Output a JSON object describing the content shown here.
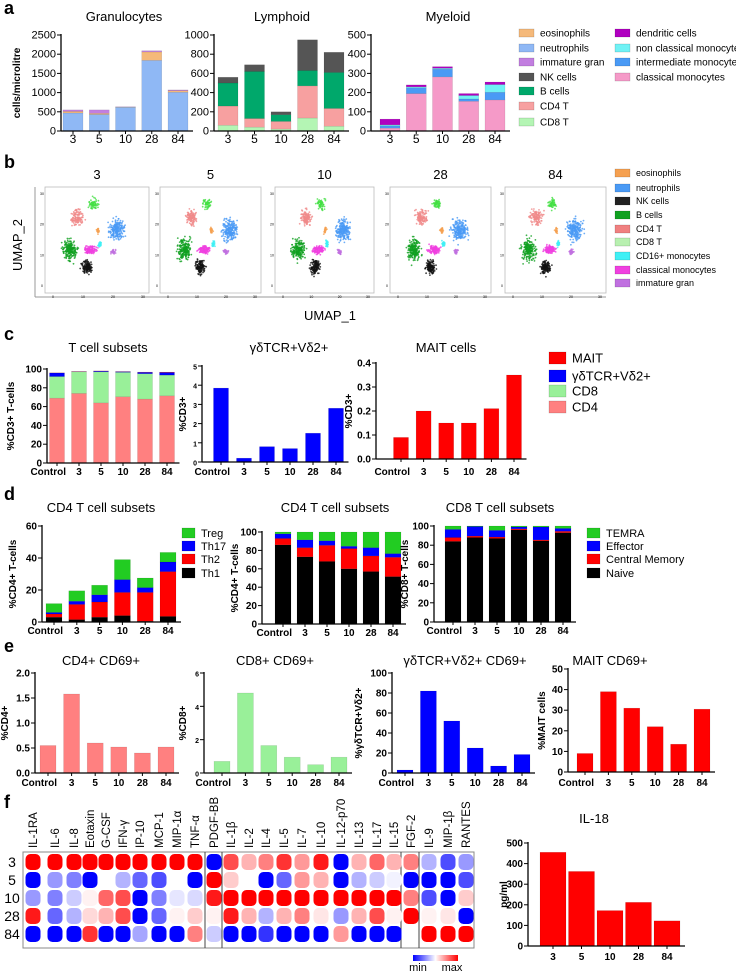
{
  "panel_labels": [
    "a",
    "b",
    "c",
    "d",
    "e",
    "f"
  ],
  "legends": {
    "a": [
      {
        "label": "eosinophils",
        "color": "#f5b97a"
      },
      {
        "label": "neutrophils",
        "color": "#8fb8f5"
      },
      {
        "label": "immature gran",
        "color": "#c27ee0"
      },
      {
        "label": "NK cells",
        "color": "#555555"
      },
      {
        "label": "B cells",
        "color": "#00a86b"
      },
      {
        "label": "CD4 T",
        "color": "#f7a0a0"
      },
      {
        "label": "CD8 T",
        "color": "#b4f5b4"
      },
      {
        "label": "dendritic cells",
        "color": "#b000c0"
      },
      {
        "label": "non classical monocytes",
        "color": "#70f2f5"
      },
      {
        "label": "intermediate monocytes",
        "color": "#4a9af5"
      },
      {
        "label": "classical monocytes",
        "color": "#f59ac8"
      }
    ],
    "b": [
      {
        "label": "eosinophils",
        "color": "#f5a050"
      },
      {
        "label": "neutrophils",
        "color": "#4a9af5"
      },
      {
        "label": "NK cells",
        "color": "#222222"
      },
      {
        "label": "B cells",
        "color": "#10a020"
      },
      {
        "label": "CD4 T",
        "color": "#f08080"
      },
      {
        "label": "CD8 T",
        "color": "#b8f0b0"
      },
      {
        "label": "CD16+ monocytes",
        "color": "#40f0f5"
      },
      {
        "label": "classical monocytes",
        "color": "#f040e0"
      },
      {
        "label": "immature gran",
        "color": "#c070e0"
      }
    ],
    "c": [
      {
        "label": "MAIT",
        "color": "#ff0000"
      },
      {
        "label": "γδTCR+Vδ2+",
        "color": "#0000ff"
      },
      {
        "label": "CD8",
        "color": "#99f099"
      },
      {
        "label": "CD4",
        "color": "#ff8080"
      }
    ],
    "d_cd4": [
      {
        "label": "Treg",
        "color": "#22cc22"
      },
      {
        "label": "Th17",
        "color": "#0000ff"
      },
      {
        "label": "Th2",
        "color": "#ff0000"
      },
      {
        "label": "Th1",
        "color": "#000000"
      }
    ],
    "d_cd8": [
      {
        "label": "TEMRA",
        "color": "#22cc22"
      },
      {
        "label": "Effector",
        "color": "#0000ff"
      },
      {
        "label": "Central Memory",
        "color": "#ff0000"
      },
      {
        "label": "Naive",
        "color": "#000000"
      }
    ]
  },
  "chart_data": [
    {
      "type": "bar",
      "stacked": true,
      "title": "Granulocytes",
      "ylabel": "cells/microlitre",
      "xlabel": "",
      "categories": [
        "3",
        "5",
        "10",
        "28",
        "84"
      ],
      "ylim": [
        0,
        2500
      ],
      "yticks": [
        0,
        500,
        1000,
        1500,
        2000,
        2500
      ],
      "ytick_labels": [
        "0",
        "500",
        "1000",
        "1500",
        "2000",
        "2500"
      ],
      "series": [
        {
          "name": "neutrophils",
          "color": "#8fb8f5",
          "values": [
            470,
            430,
            620,
            1840,
            1010
          ]
        },
        {
          "name": "eosinophils",
          "color": "#f5b97a",
          "values": [
            40,
            30,
            5,
            220,
            40
          ]
        },
        {
          "name": "immature gran",
          "color": "#c27ee0",
          "values": [
            40,
            90,
            5,
            30,
            20
          ]
        }
      ]
    },
    {
      "type": "bar",
      "stacked": true,
      "title": "Lymphoid",
      "ylabel": "",
      "xlabel": "",
      "categories": [
        "3",
        "5",
        "10",
        "28",
        "84"
      ],
      "ylim": [
        0,
        1000
      ],
      "yticks": [
        0,
        200,
        400,
        600,
        800,
        1000
      ],
      "ytick_labels": [
        "0",
        "200",
        "400",
        "600",
        "800",
        "1000"
      ],
      "series": [
        {
          "name": "CD8 T",
          "color": "#b4f5b4",
          "values": [
            60,
            40,
            20,
            135,
            50
          ]
        },
        {
          "name": "CD4 T",
          "color": "#f7a0a0",
          "values": [
            200,
            90,
            80,
            335,
            185
          ]
        },
        {
          "name": "B cells",
          "color": "#00a86b",
          "values": [
            240,
            490,
            70,
            160,
            375
          ]
        },
        {
          "name": "NK cells",
          "color": "#555555",
          "values": [
            60,
            70,
            30,
            320,
            210
          ]
        }
      ]
    },
    {
      "type": "bar",
      "stacked": true,
      "title": "Myeloid",
      "ylabel": "",
      "xlabel": "",
      "categories": [
        "3",
        "5",
        "10",
        "28",
        "84"
      ],
      "ylim": [
        0,
        500
      ],
      "yticks": [
        0,
        100,
        200,
        300,
        400,
        500
      ],
      "ytick_labels": [
        "0",
        "100",
        "200",
        "300",
        "400",
        "500"
      ],
      "series": [
        {
          "name": "classical monocytes",
          "color": "#f59ac8",
          "values": [
            15,
            195,
            282,
            155,
            162
          ]
        },
        {
          "name": "intermediate monocytes",
          "color": "#4a9af5",
          "values": [
            12,
            30,
            40,
            12,
            40
          ]
        },
        {
          "name": "non classical monocytes",
          "color": "#70f2f5",
          "values": [
            5,
            5,
            5,
            18,
            40
          ]
        },
        {
          "name": "dendritic cells",
          "color": "#b000c0",
          "values": [
            30,
            10,
            8,
            10,
            13
          ]
        }
      ]
    },
    {
      "type": "scatter",
      "title": "UMAP",
      "xlabel": "UMAP_1",
      "ylabel": "UMAP_2",
      "panels": [
        "3",
        "5",
        "10",
        "28",
        "84"
      ],
      "tick_labels": [
        "0",
        "10",
        "20",
        "30"
      ]
    },
    {
      "type": "bar",
      "stacked": true,
      "title": "T cell subsets",
      "ylabel": "%CD3+ T-cells",
      "xlabel": "",
      "categories": [
        "Control",
        "3",
        "5",
        "10",
        "28",
        "84"
      ],
      "ylim": [
        0,
        100
      ],
      "yticks": [
        0,
        20,
        40,
        60,
        80,
        100
      ],
      "ytick_labels": [
        "0",
        "20",
        "40",
        "60",
        "80",
        "100"
      ],
      "series": [
        {
          "name": "CD4",
          "color": "#ff8080",
          "values": [
            69,
            74,
            64,
            70.5,
            68,
            71.5
          ]
        },
        {
          "name": "CD8",
          "color": "#99f099",
          "values": [
            23,
            23,
            33,
            26,
            27,
            22
          ]
        },
        {
          "name": "γδTCR+Vδ2+",
          "color": "#0000ff",
          "values": [
            3.8,
            0.2,
            0.8,
            0.7,
            1.5,
            2.8
          ]
        },
        {
          "name": "MAIT",
          "color": "#ff0000",
          "values": [
            0.1,
            0.2,
            0.15,
            0.15,
            0.2,
            0.35
          ]
        }
      ]
    },
    {
      "type": "bar",
      "title": "γδTCR+Vδ2+",
      "ylabel": "%CD3+",
      "xlabel": "",
      "categories": [
        "Control",
        "3",
        "5",
        "10",
        "28",
        "84"
      ],
      "ylim": [
        0,
        5
      ],
      "yticks": [
        0,
        1,
        2,
        3,
        4,
        5
      ],
      "ytick_labels": [
        "0",
        "1",
        "2",
        "3",
        "4",
        "5"
      ],
      "series": [
        {
          "name": "γδTCR+Vδ2+",
          "color": "#0000ff",
          "values": [
            3.85,
            0.2,
            0.8,
            0.7,
            1.5,
            2.8
          ]
        }
      ]
    },
    {
      "type": "bar",
      "title": "MAIT cells",
      "ylabel": "%CD3+",
      "xlabel": "",
      "categories": [
        "Control",
        "3",
        "5",
        "10",
        "28",
        "84"
      ],
      "ylim": [
        0,
        0.4
      ],
      "yticks": [
        0,
        0.1,
        0.2,
        0.3,
        0.4
      ],
      "ytick_labels": [
        "0.0",
        "0.1",
        "0.2",
        "0.3",
        "0.4"
      ],
      "series": [
        {
          "name": "MAIT",
          "color": "#ff0000",
          "values": [
            0.09,
            0.2,
            0.15,
            0.15,
            0.21,
            0.35
          ]
        }
      ]
    },
    {
      "type": "bar",
      "stacked": true,
      "title": "CD4 T cell subsets",
      "ylabel": "%CD4+ T-cells",
      "xlabel": "",
      "categories": [
        "Control",
        "3",
        "5",
        "10",
        "28",
        "84"
      ],
      "ylim": [
        0,
        60
      ],
      "yticks": [
        0,
        20,
        40,
        60
      ],
      "ytick_labels": [
        "0",
        "20",
        "40",
        "60"
      ],
      "series": [
        {
          "name": "Th1",
          "color": "#000000",
          "values": [
            3,
            1.5,
            3,
            4,
            0.5,
            3.5
          ]
        },
        {
          "name": "Th2",
          "color": "#ff0000",
          "values": [
            2,
            9.5,
            9.5,
            14.5,
            18,
            28
          ]
        },
        {
          "name": "Th17",
          "color": "#0000ff",
          "values": [
            1,
            2,
            4.5,
            8,
            3,
            6
          ]
        },
        {
          "name": "Treg",
          "color": "#22cc22",
          "values": [
            5.5,
            6.5,
            6,
            12.5,
            6,
            6
          ]
        }
      ]
    },
    {
      "type": "bar",
      "stacked": true,
      "title": "CD4 T cell subsets",
      "ylabel": "%CD4+  T-cells",
      "xlabel": "",
      "categories": [
        "Control",
        "3",
        "5",
        "10",
        "28",
        "84"
      ],
      "ylim": [
        0,
        100
      ],
      "yticks": [
        0,
        20,
        40,
        60,
        80,
        100
      ],
      "ytick_labels": [
        "0",
        "20",
        "40",
        "60",
        "80",
        "100"
      ],
      "series": [
        {
          "name": "Naive",
          "color": "#000000",
          "values": [
            86,
            73,
            68,
            60,
            57,
            51.5
          ]
        },
        {
          "name": "Central Memory",
          "color": "#ff0000",
          "values": [
            7,
            10,
            17.5,
            22,
            17,
            21
          ]
        },
        {
          "name": "Effector",
          "color": "#0000ff",
          "values": [
            5,
            8.5,
            5,
            2.5,
            9,
            4
          ]
        },
        {
          "name": "TEMRA",
          "color": "#22cc22",
          "values": [
            2,
            8.5,
            9.5,
            15.5,
            17,
            23.5
          ]
        }
      ]
    },
    {
      "type": "bar",
      "stacked": true,
      "title": "CD8 T cell subsets",
      "ylabel": "%CD8+ T-cells",
      "xlabel": "",
      "categories": [
        "Control",
        "3",
        "5",
        "10",
        "28",
        "84"
      ],
      "ylim": [
        0,
        100
      ],
      "yticks": [
        0,
        20,
        40,
        60,
        80,
        100
      ],
      "ytick_labels": [
        "0",
        "20",
        "40",
        "60",
        "80",
        "100"
      ],
      "series": [
        {
          "name": "Naive",
          "color": "#000000",
          "values": [
            84,
            88,
            87,
            96,
            84.5,
            93
          ]
        },
        {
          "name": "Central Memory",
          "color": "#ff0000",
          "values": [
            4,
            1.5,
            1.5,
            1,
            1,
            1.5
          ]
        },
        {
          "name": "Effector",
          "color": "#0000ff",
          "values": [
            8.5,
            10,
            7,
            2,
            13.5,
            3
          ]
        },
        {
          "name": "TEMRA",
          "color": "#22cc22",
          "values": [
            3.5,
            0.5,
            4.5,
            1,
            1,
            2.5
          ]
        }
      ]
    },
    {
      "type": "bar",
      "title": "CD4+ CD69+",
      "ylabel": "%CD4+",
      "xlabel": "",
      "categories": [
        "Control",
        "3",
        "5",
        "10",
        "28",
        "84"
      ],
      "ylim": [
        0,
        2
      ],
      "yticks": [
        0,
        0.5,
        1,
        1.5,
        2
      ],
      "ytick_labels": [
        "0.0",
        "0.5",
        "1.0",
        "1.5",
        "2.0"
      ],
      "series": [
        {
          "name": "CD4+ CD69+",
          "color": "#ff8080",
          "values": [
            0.55,
            1.58,
            0.6,
            0.52,
            0.4,
            0.52
          ]
        }
      ]
    },
    {
      "type": "bar",
      "title": "CD8+ CD69+",
      "ylabel": "%CD8+",
      "xlabel": "",
      "categories": [
        "Control",
        "3",
        "5",
        "10",
        "28",
        "84"
      ],
      "ylim": [
        0,
        6
      ],
      "yticks": [
        0,
        2,
        4,
        6
      ],
      "ytick_labels": [
        "0",
        "2",
        "4",
        "6"
      ],
      "series": [
        {
          "name": "CD8+ CD69+",
          "color": "#99f099",
          "values": [
            0.7,
            4.8,
            1.65,
            0.95,
            0.5,
            0.95
          ]
        }
      ]
    },
    {
      "type": "bar",
      "title": "γδTCR+Vδ2+ CD69+",
      "ylabel": "%γδTCR+Vδ2+",
      "xlabel": "",
      "categories": [
        "Control",
        "3",
        "5",
        "10",
        "28",
        "84"
      ],
      "ylim": [
        0,
        100
      ],
      "yticks": [
        0,
        20,
        40,
        60,
        80,
        100
      ],
      "ytick_labels": [
        "0",
        "20",
        "40",
        "60",
        "80",
        "100"
      ],
      "series": [
        {
          "name": "γδTCR+Vδ2+ CD69+",
          "color": "#0000ff",
          "values": [
            3,
            82,
            52,
            25,
            7,
            18.5
          ]
        }
      ]
    },
    {
      "type": "bar",
      "title": "MAIT CD69+",
      "ylabel": "%MAIT cells",
      "xlabel": "",
      "categories": [
        "Control",
        "3",
        "5",
        "10",
        "28",
        "84"
      ],
      "ylim": [
        0,
        50
      ],
      "yticks": [
        0,
        10,
        20,
        30,
        40,
        50
      ],
      "ytick_labels": [
        "0",
        "10",
        "20",
        "30",
        "40",
        "50"
      ],
      "series": [
        {
          "name": "MAIT CD69+",
          "color": "#ff0000",
          "values": [
            9,
            39,
            31,
            22,
            13.5,
            30.5
          ]
        }
      ]
    },
    {
      "type": "heatmap",
      "title": "",
      "columns": [
        "IL-1RA",
        "IL-6",
        "IL-8",
        "Eotaxin",
        "G-CSF",
        "IFN-γ",
        "IP-10",
        "MCP-1",
        "MIP-1α",
        "TNF-α",
        "PDGF-BB",
        "IL-1β",
        "IL-2",
        "IL-4",
        "IL-5",
        "IL-7",
        "IL-10",
        "IL-12-p70",
        "IL-13",
        "IL-17",
        "IL-15",
        "FGF-2",
        "IL-9",
        "MIP-1β",
        "RANTES"
      ],
      "rows": [
        "3",
        "5",
        "10",
        "28",
        "84"
      ],
      "values": [
        [
          1,
          1,
          1,
          1,
          1,
          1,
          1,
          1,
          1,
          1,
          -1,
          0.7,
          0.3,
          0.5,
          0.8,
          0.4,
          0.9,
          -1,
          0.3,
          0.6,
          0.3,
          0.5,
          -0.3,
          -0.7,
          -0.4
        ],
        [
          -1,
          -0.4,
          -0.5,
          -1,
          0,
          -0.3,
          -0.6,
          -0.7,
          0,
          -1,
          1,
          0.2,
          0,
          -1,
          -0.6,
          0.4,
          0.3,
          -1,
          -0.3,
          -0.2,
          -0.05,
          -1,
          -1,
          -1,
          -0.7
        ],
        [
          -0.4,
          -0.5,
          -0.2,
          0.05,
          0.6,
          0.7,
          -1,
          -0.5,
          -0.1,
          -0.15,
          0.9,
          1,
          1,
          1,
          1,
          1,
          1,
          1,
          1,
          1,
          1,
          0.5,
          -0.7,
          -1,
          0.2
        ],
        [
          0.9,
          -0.6,
          -0.3,
          0.15,
          0.3,
          0.7,
          -1,
          -0.6,
          0.05,
          0.2,
          0.05,
          0.9,
          0.3,
          -0.3,
          0.3,
          0.5,
          0.1,
          -0.4,
          0.3,
          0.7,
          0.05,
          1,
          0.05,
          0.1,
          -1
        ],
        [
          -1,
          -1,
          -1,
          0.8,
          -1,
          -1,
          -0.35,
          -1,
          -1,
          0.5,
          -0.2,
          -1,
          -1,
          -0.8,
          -1,
          -1,
          -1,
          0.4,
          -1,
          -1,
          -1,
          0,
          1,
          1,
          1
        ]
      ],
      "scale_min_label": "min",
      "scale_max_label": "max",
      "colors": {
        "min": "#0000ff",
        "mid": "#ffffff",
        "max": "#ff0000"
      }
    },
    {
      "type": "bar",
      "title": "IL-18",
      "ylabel": "pg/ml",
      "xlabel": "",
      "categories": [
        "3",
        "5",
        "10",
        "28",
        "84"
      ],
      "ylim": [
        0,
        500
      ],
      "yticks": [
        0,
        100,
        200,
        300,
        400,
        500
      ],
      "ytick_labels": [
        "0",
        "100",
        "200",
        "300",
        "400",
        "500"
      ],
      "series": [
        {
          "name": "IL-18",
          "color": "#ff0000",
          "values": [
            455,
            362,
            172,
            212,
            122
          ]
        }
      ]
    }
  ]
}
